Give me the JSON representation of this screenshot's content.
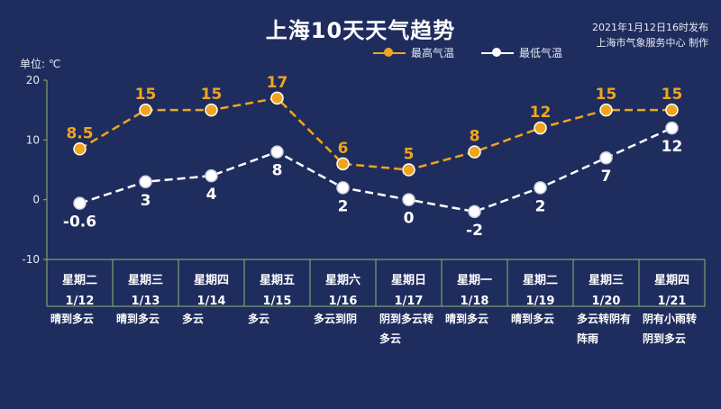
{
  "header": {
    "title": "上海10天天气趋势",
    "publish_line1": "2021年1月12日16时发布",
    "publish_line2": "上海市气象服务中心 制作",
    "unit": "单位: ℃"
  },
  "colors": {
    "background": "#1f2d5e",
    "high": "#f0a51f",
    "low": "#ffffff",
    "axis": "#8fb86a"
  },
  "chart_data": {
    "type": "line",
    "title": "上海10天天气趋势",
    "ylabel": "单位: ℃",
    "ylim": [
      -10,
      20
    ],
    "yticks": [
      20,
      10,
      0,
      -10
    ],
    "grid": false,
    "legend_position": "top-right",
    "categories": [
      "星期二",
      "星期三",
      "星期四",
      "星期五",
      "星期六",
      "星期日",
      "星期一",
      "星期二",
      "星期三",
      "星期四"
    ],
    "dates": [
      "1/12",
      "1/13",
      "1/14",
      "1/15",
      "1/16",
      "1/17",
      "1/18",
      "1/19",
      "1/20",
      "1/21"
    ],
    "weather": [
      "晴到多云",
      "晴到多云",
      "多云",
      "多云",
      "多云到阴",
      "阴到多云转多云",
      "晴到多云",
      "晴到多云",
      "多云转阴有阵雨",
      "阴有小雨转阴到多云"
    ],
    "series": [
      {
        "name": "最高气温",
        "values": [
          8.5,
          15,
          15,
          17,
          6,
          5,
          8,
          12,
          15,
          15
        ],
        "labels": [
          "8.5",
          "15",
          "15",
          "17",
          "6",
          "5",
          "8",
          "12",
          "15",
          "15"
        ]
      },
      {
        "name": "最低气温",
        "values": [
          -0.6,
          3,
          4,
          8,
          2,
          0,
          -2,
          2,
          7,
          12
        ],
        "labels": [
          "-0.6",
          "3",
          "4",
          "8",
          "2",
          "0",
          "-2",
          "2",
          "7",
          "12"
        ]
      }
    ]
  }
}
